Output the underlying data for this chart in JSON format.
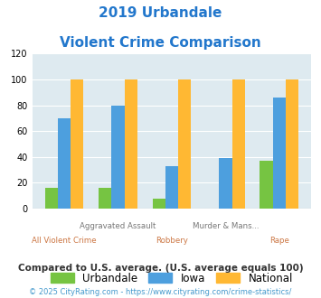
{
  "title_line1": "2019 Urbandale",
  "title_line2": "Violent Crime Comparison",
  "categories": [
    "All Violent Crime",
    "Aggravated Assault",
    "Robbery",
    "Murder & Mans...",
    "Rape"
  ],
  "top_labels": [
    "",
    "Aggravated Assault",
    "",
    "Murder & Mans...",
    ""
  ],
  "bottom_labels": [
    "All Violent Crime",
    "",
    "Robbery",
    "",
    "Rape"
  ],
  "urbandale": [
    16,
    16,
    8,
    0,
    37
  ],
  "iowa": [
    70,
    80,
    33,
    39,
    86
  ],
  "national": [
    100,
    100,
    100,
    100,
    100
  ],
  "colors": {
    "urbandale": "#76c442",
    "iowa": "#4d9fde",
    "national": "#ffb833"
  },
  "ylim": [
    0,
    120
  ],
  "yticks": [
    0,
    20,
    40,
    60,
    80,
    100,
    120
  ],
  "bg_color": "#deeaf0",
  "legend_label_urbandale": "Urbandale",
  "legend_label_iowa": "Iowa",
  "legend_label_national": "National",
  "footnote1": "Compared to U.S. average. (U.S. average equals 100)",
  "footnote2": "© 2025 CityRating.com - https://www.cityrating.com/crime-statistics/",
  "title_color": "#2277cc",
  "top_label_color": "#777777",
  "bottom_label_color": "#cc7744",
  "footnote1_color": "#333333",
  "footnote2_color": "#4499cc"
}
